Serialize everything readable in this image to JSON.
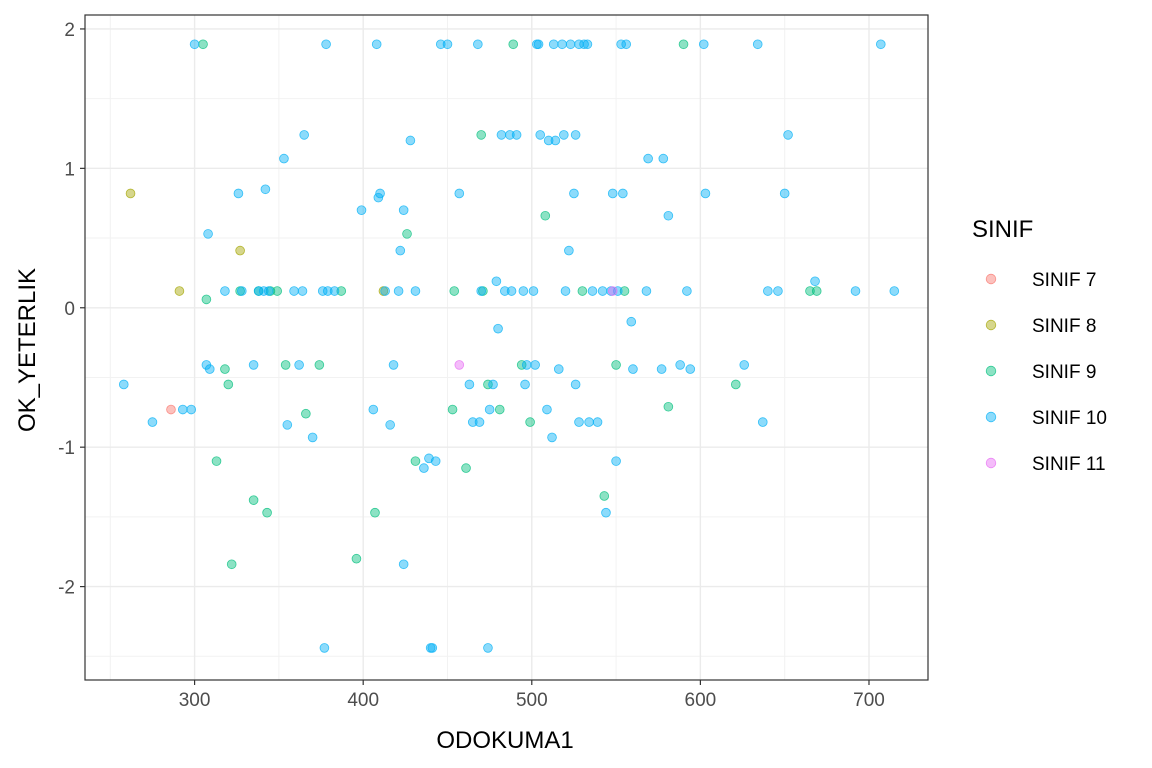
{
  "chart_data": {
    "type": "scatter",
    "xlabel": "ODOKUMA1",
    "ylabel": "OK_YETERLIK",
    "xlim": [
      235,
      735
    ],
    "ylim": [
      -2.67,
      2.1
    ],
    "xticks": [
      300,
      400,
      500,
      600,
      700
    ],
    "yticks": [
      -2,
      -1,
      0,
      1,
      2
    ],
    "xtick_labels": [
      "300",
      "400",
      "500",
      "600",
      "700"
    ],
    "ytick_labels": [
      "-2",
      "-1",
      "0",
      "1",
      "2"
    ],
    "grid": true,
    "legend_title": "SINIF",
    "legend_position": "right",
    "point_alpha": 0.45,
    "series": [
      {
        "name": "SINIF 7",
        "color": "#F8766D",
        "points": [
          [
            286,
            -0.73
          ]
        ]
      },
      {
        "name": "SINIF 8",
        "color": "#A3A500",
        "points": [
          [
            262,
            0.82
          ],
          [
            291,
            0.12
          ],
          [
            327,
            0.41
          ],
          [
            412,
            0.12
          ]
        ]
      },
      {
        "name": "SINIF 9",
        "color": "#00BF7D",
        "points": [
          [
            305,
            1.89
          ],
          [
            307,
            0.06
          ],
          [
            313,
            -1.1
          ],
          [
            318,
            -0.44
          ],
          [
            320,
            -0.55
          ],
          [
            322,
            -1.84
          ],
          [
            327,
            0.12
          ],
          [
            335,
            -1.38
          ],
          [
            338,
            0.12
          ],
          [
            343,
            -1.47
          ],
          [
            345,
            0.12
          ],
          [
            349,
            0.12
          ],
          [
            354,
            -0.41
          ],
          [
            366,
            -0.76
          ],
          [
            374,
            -0.41
          ],
          [
            387,
            0.12
          ],
          [
            396,
            -1.8
          ],
          [
            407,
            -1.47
          ],
          [
            426,
            0.53
          ],
          [
            431,
            -1.1
          ],
          [
            453,
            -0.73
          ],
          [
            454,
            0.12
          ],
          [
            461,
            -1.15
          ],
          [
            470,
            1.24
          ],
          [
            471,
            0.12
          ],
          [
            474,
            -0.55
          ],
          [
            481,
            -0.73
          ],
          [
            489,
            1.89
          ],
          [
            494,
            -0.41
          ],
          [
            499,
            -0.82
          ],
          [
            508,
            0.66
          ],
          [
            530,
            0.12
          ],
          [
            543,
            -1.35
          ],
          [
            550,
            -0.41
          ],
          [
            555,
            0.12
          ],
          [
            581,
            -0.71
          ],
          [
            590,
            1.89
          ],
          [
            621,
            -0.55
          ],
          [
            665,
            0.12
          ],
          [
            669,
            0.12
          ]
        ]
      },
      {
        "name": "SINIF 10",
        "color": "#00B0F6",
        "points": [
          [
            258,
            -0.55
          ],
          [
            275,
            -0.82
          ],
          [
            293,
            -0.73
          ],
          [
            298,
            -0.73
          ],
          [
            300,
            1.89
          ],
          [
            307,
            -0.41
          ],
          [
            308,
            0.53
          ],
          [
            309,
            -0.44
          ],
          [
            318,
            0.12
          ],
          [
            326,
            0.82
          ],
          [
            328,
            0.12
          ],
          [
            335,
            -0.41
          ],
          [
            338,
            0.12
          ],
          [
            341,
            0.12
          ],
          [
            342,
            0.85
          ],
          [
            344,
            0.12
          ],
          [
            353,
            1.07
          ],
          [
            355,
            -0.84
          ],
          [
            359,
            0.12
          ],
          [
            362,
            -0.41
          ],
          [
            364,
            0.12
          ],
          [
            365,
            1.24
          ],
          [
            370,
            -0.93
          ],
          [
            376,
            0.12
          ],
          [
            377,
            -2.44
          ],
          [
            378,
            1.89
          ],
          [
            379,
            0.12
          ],
          [
            383,
            0.12
          ],
          [
            399,
            0.7
          ],
          [
            406,
            -0.73
          ],
          [
            408,
            1.89
          ],
          [
            409,
            0.79
          ],
          [
            410,
            0.82
          ],
          [
            413,
            0.12
          ],
          [
            416,
            -0.84
          ],
          [
            418,
            -0.41
          ],
          [
            421,
            0.12
          ],
          [
            422,
            0.41
          ],
          [
            424,
            -1.84
          ],
          [
            424,
            0.7
          ],
          [
            428,
            1.2
          ],
          [
            431,
            0.12
          ],
          [
            436,
            -1.15
          ],
          [
            439,
            -1.08
          ],
          [
            440,
            -2.44
          ],
          [
            441,
            -2.44
          ],
          [
            443,
            -1.1
          ],
          [
            446,
            1.89
          ],
          [
            450,
            1.89
          ],
          [
            457,
            0.82
          ],
          [
            463,
            -0.55
          ],
          [
            465,
            -0.82
          ],
          [
            468,
            1.89
          ],
          [
            469,
            -0.82
          ],
          [
            470,
            0.12
          ],
          [
            474,
            -2.44
          ],
          [
            475,
            -0.73
          ],
          [
            477,
            -0.55
          ],
          [
            479,
            0.19
          ],
          [
            480,
            -0.15
          ],
          [
            482,
            1.24
          ],
          [
            484,
            0.12
          ],
          [
            487,
            1.24
          ],
          [
            488,
            0.12
          ],
          [
            491,
            1.24
          ],
          [
            495,
            0.12
          ],
          [
            496,
            -0.55
          ],
          [
            497,
            -0.41
          ],
          [
            501,
            0.12
          ],
          [
            502,
            -0.41
          ],
          [
            503,
            1.89
          ],
          [
            504,
            1.89
          ],
          [
            505,
            1.24
          ],
          [
            509,
            -0.73
          ],
          [
            510,
            1.2
          ],
          [
            512,
            -0.93
          ],
          [
            513,
            1.89
          ],
          [
            514,
            1.2
          ],
          [
            516,
            -0.44
          ],
          [
            518,
            1.89
          ],
          [
            519,
            1.24
          ],
          [
            520,
            0.12
          ],
          [
            522,
            0.41
          ],
          [
            523,
            1.89
          ],
          [
            525,
            0.82
          ],
          [
            526,
            1.24
          ],
          [
            526,
            -0.55
          ],
          [
            528,
            1.89
          ],
          [
            528,
            -0.82
          ],
          [
            531,
            1.89
          ],
          [
            533,
            1.89
          ],
          [
            534,
            -0.82
          ],
          [
            536,
            0.12
          ],
          [
            539,
            -0.82
          ],
          [
            542,
            0.12
          ],
          [
            544,
            -1.47
          ],
          [
            547,
            0.12
          ],
          [
            548,
            0.82
          ],
          [
            550,
            -1.1
          ],
          [
            551,
            0.12
          ],
          [
            553,
            1.89
          ],
          [
            554,
            0.82
          ],
          [
            556,
            1.89
          ],
          [
            559,
            -0.1
          ],
          [
            560,
            -0.44
          ],
          [
            568,
            0.12
          ],
          [
            569,
            1.07
          ],
          [
            577,
            -0.44
          ],
          [
            578,
            1.07
          ],
          [
            581,
            0.66
          ],
          [
            588,
            -0.41
          ],
          [
            592,
            0.12
          ],
          [
            594,
            -0.44
          ],
          [
            602,
            1.89
          ],
          [
            603,
            0.82
          ],
          [
            626,
            -0.41
          ],
          [
            634,
            1.89
          ],
          [
            637,
            -0.82
          ],
          [
            640,
            0.12
          ],
          [
            646,
            0.12
          ],
          [
            650,
            0.82
          ],
          [
            652,
            1.24
          ],
          [
            668,
            0.19
          ],
          [
            692,
            0.12
          ],
          [
            707,
            1.89
          ],
          [
            715,
            0.12
          ]
        ]
      },
      {
        "name": "SINIF 11",
        "color": "#E76BF3",
        "points": [
          [
            457,
            -0.41
          ],
          [
            548,
            0.12
          ]
        ]
      }
    ]
  }
}
